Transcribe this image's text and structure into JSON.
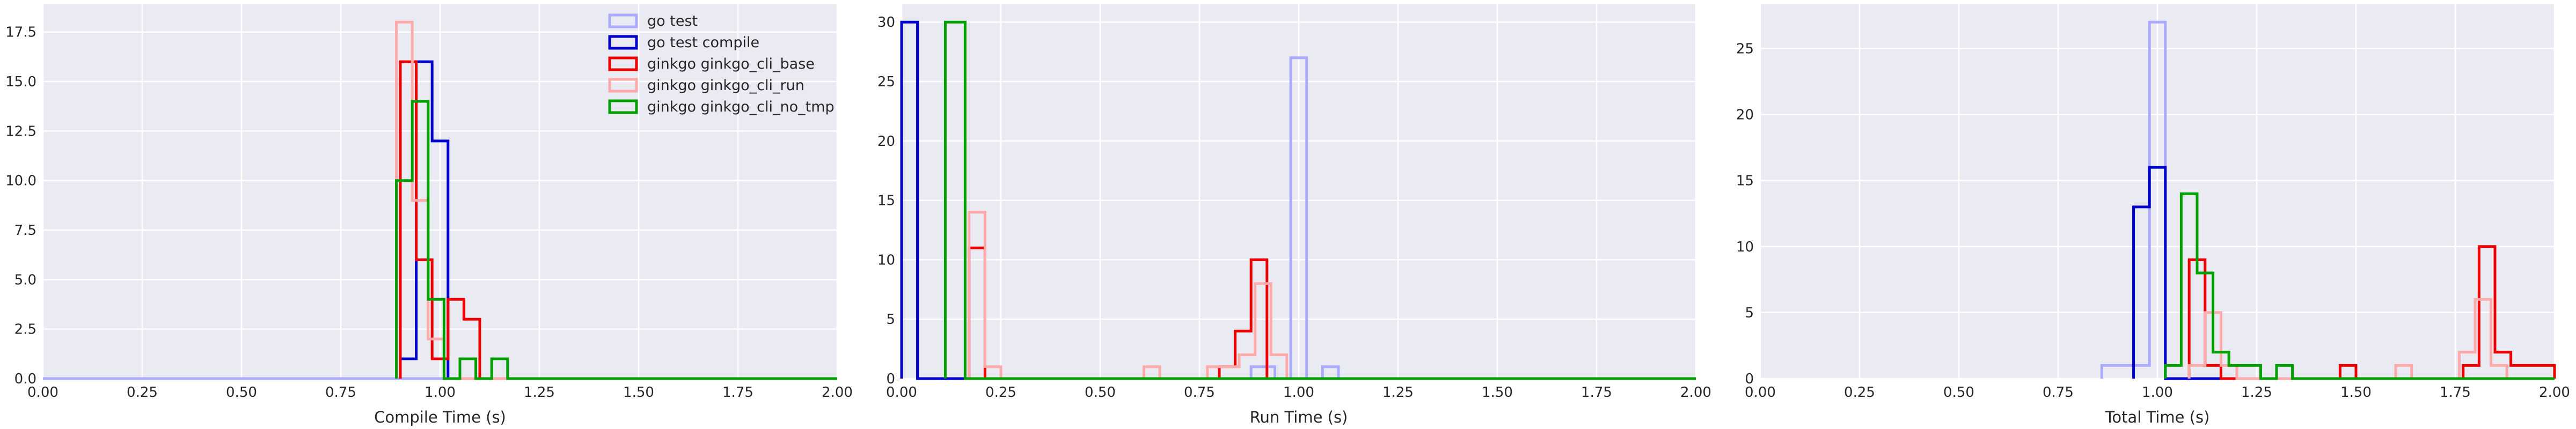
{
  "chart_data": [
    {
      "type": "histogram-step",
      "xlabel": "Compile Time (s)",
      "xlim": [
        0,
        2
      ],
      "ylim": [
        0,
        18.9
      ],
      "xticks": [
        "0.00",
        "0.25",
        "0.50",
        "0.75",
        "1.00",
        "1.25",
        "1.50",
        "1.75",
        "2.00"
      ],
      "yticks": [
        "0.0",
        "2.5",
        "5.0",
        "7.5",
        "10.0",
        "12.5",
        "15.0",
        "17.5"
      ],
      "grid": true,
      "legend": {
        "placement": "upper-right"
      },
      "series": [
        {
          "name": "go test",
          "color": "#aaaaff",
          "bins": [
            [
              0,
              2,
              0
            ]
          ]
        },
        {
          "name": "go test compile",
          "color": "#0000cc",
          "bins": [
            [
              0.9,
              0.94,
              1
            ],
            [
              0.94,
              0.98,
              16
            ],
            [
              0.98,
              1.02,
              12
            ],
            [
              1.02,
              2,
              0
            ]
          ]
        },
        {
          "name": "ginkgo ginkgo_cli_base",
          "color": "#ee0000",
          "bins": [
            [
              0.9,
              0.94,
              16
            ],
            [
              0.94,
              0.98,
              6
            ],
            [
              0.98,
              1.02,
              1
            ],
            [
              1.02,
              1.06,
              4
            ],
            [
              1.06,
              1.1,
              3
            ],
            [
              1.1,
              2,
              0
            ]
          ]
        },
        {
          "name": "ginkgo ginkgo_cli_run",
          "color": "#ffaaaa",
          "bins": [
            [
              0.89,
              0.93,
              18
            ],
            [
              0.93,
              0.97,
              9
            ],
            [
              0.97,
              1.01,
              2
            ],
            [
              1.01,
              2,
              0
            ]
          ]
        },
        {
          "name": "ginkgo ginkgo_cli_no_tmp",
          "color": "#00a000",
          "bins": [
            [
              0.89,
              0.93,
              10
            ],
            [
              0.93,
              0.97,
              14
            ],
            [
              0.97,
              1.01,
              4
            ],
            [
              1.01,
              1.05,
              0
            ],
            [
              1.05,
              1.09,
              1
            ],
            [
              1.09,
              1.13,
              0
            ],
            [
              1.13,
              1.17,
              1
            ],
            [
              1.17,
              2,
              0
            ]
          ]
        }
      ]
    },
    {
      "type": "histogram-step",
      "xlabel": "Run Time (s)",
      "xlim": [
        0,
        2
      ],
      "ylim": [
        0,
        31.5
      ],
      "xticks": [
        "0.00",
        "0.25",
        "0.50",
        "0.75",
        "1.00",
        "1.25",
        "1.50",
        "1.75",
        "2.00"
      ],
      "yticks": [
        "0",
        "5",
        "10",
        "15",
        "20",
        "25",
        "30"
      ],
      "grid": true,
      "series": [
        {
          "name": "go test",
          "color": "#aaaaff",
          "bins": [
            [
              0.68,
              0.88,
              0
            ],
            [
              0.88,
              0.94,
              1
            ],
            [
              0.94,
              0.98,
              0
            ],
            [
              0.98,
              1.02,
              27
            ],
            [
              1.02,
              1.06,
              0
            ],
            [
              1.06,
              1.1,
              1
            ],
            [
              1.1,
              2,
              0
            ]
          ]
        },
        {
          "name": "go test compile",
          "color": "#0000cc",
          "bins": [
            [
              0,
              0.04,
              30
            ],
            [
              0.04,
              2,
              0
            ]
          ]
        },
        {
          "name": "ginkgo ginkgo_cli_base",
          "color": "#ee0000",
          "bins": [
            [
              0.17,
              0.21,
              11
            ],
            [
              0.21,
              0.8,
              0
            ],
            [
              0.8,
              0.84,
              1
            ],
            [
              0.84,
              0.88,
              4
            ],
            [
              0.88,
              0.92,
              10
            ],
            [
              0.92,
              0.96,
              0
            ],
            [
              0.96,
              2,
              0
            ]
          ]
        },
        {
          "name": "ginkgo ginkgo_cli_run",
          "color": "#ffaaaa",
          "bins": [
            [
              0.17,
              0.21,
              14
            ],
            [
              0.21,
              0.25,
              1
            ],
            [
              0.25,
              0.61,
              0
            ],
            [
              0.61,
              0.65,
              1
            ],
            [
              0.65,
              0.77,
              0
            ],
            [
              0.77,
              0.85,
              1
            ],
            [
              0.85,
              0.89,
              2
            ],
            [
              0.89,
              0.93,
              8
            ],
            [
              0.93,
              0.97,
              2
            ],
            [
              0.97,
              2,
              0
            ]
          ]
        },
        {
          "name": "ginkgo ginkgo_cli_no_tmp",
          "color": "#00a000",
          "bins": [
            [
              0.11,
              0.16,
              30
            ],
            [
              0.16,
              2,
              0
            ]
          ]
        }
      ]
    },
    {
      "type": "histogram-step",
      "xlabel": "Total Time (s)",
      "xlim": [
        0,
        2
      ],
      "ylim": [
        0,
        28.35
      ],
      "xticks": [
        "0.00",
        "0.25",
        "0.50",
        "0.75",
        "1.00",
        "1.25",
        "1.50",
        "1.75",
        "2.00"
      ],
      "yticks": [
        "0",
        "5",
        "10",
        "15",
        "20",
        "25"
      ],
      "grid": true,
      "series": [
        {
          "name": "go test",
          "color": "#aaaaff",
          "bins": [
            [
              0.86,
              0.94,
              1
            ],
            [
              0.94,
              0.98,
              1
            ],
            [
              0.98,
              1.02,
              27
            ],
            [
              1.02,
              2,
              0
            ]
          ]
        },
        {
          "name": "go test compile",
          "color": "#0000cc",
          "bins": [
            [
              0.94,
              0.98,
              13
            ],
            [
              0.98,
              1.02,
              16
            ],
            [
              1.02,
              2,
              0
            ]
          ]
        },
        {
          "name": "ginkgo ginkgo_cli_base",
          "color": "#ee0000",
          "bins": [
            [
              1.08,
              1.12,
              9
            ],
            [
              1.12,
              1.16,
              1
            ],
            [
              1.16,
              1.46,
              0
            ],
            [
              1.46,
              1.5,
              1
            ],
            [
              1.5,
              1.77,
              0
            ],
            [
              1.77,
              1.81,
              1
            ],
            [
              1.81,
              1.85,
              10
            ],
            [
              1.85,
              1.89,
              2
            ],
            [
              1.89,
              1.93,
              1
            ],
            [
              1.93,
              2,
              1
            ]
          ]
        },
        {
          "name": "ginkgo ginkgo_cli_run",
          "color": "#ffaaaa",
          "bins": [
            [
              1.08,
              1.12,
              1
            ],
            [
              1.12,
              1.16,
              5
            ],
            [
              1.16,
              1.2,
              1
            ],
            [
              1.2,
              1.6,
              0
            ],
            [
              1.6,
              1.64,
              1
            ],
            [
              1.64,
              1.76,
              0
            ],
            [
              1.76,
              1.8,
              2
            ],
            [
              1.8,
              1.84,
              6
            ],
            [
              1.84,
              1.88,
              1
            ],
            [
              1.88,
              2,
              0
            ]
          ]
        },
        {
          "name": "ginkgo ginkgo_cli_no_tmp",
          "color": "#00a000",
          "bins": [
            [
              1.02,
              1.06,
              1
            ],
            [
              1.06,
              1.1,
              14
            ],
            [
              1.1,
              1.14,
              8
            ],
            [
              1.14,
              1.18,
              2
            ],
            [
              1.18,
              1.22,
              1
            ],
            [
              1.22,
              1.26,
              1
            ],
            [
              1.26,
              1.3,
              0
            ],
            [
              1.3,
              1.34,
              1
            ],
            [
              1.34,
              2,
              0
            ]
          ]
        }
      ]
    }
  ]
}
